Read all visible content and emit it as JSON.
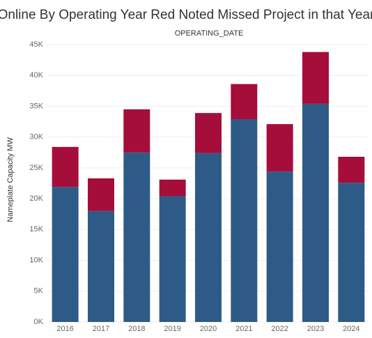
{
  "chart_data": {
    "type": "stacked_bar",
    "title": "Online By Operating Year Red Noted Missed Project in that Year",
    "x_label": "OPERATING_DATE",
    "y_label": "Nameplate Capacity MW",
    "categories": [
      "2016",
      "2017",
      "2018",
      "2019",
      "2020",
      "2021",
      "2022",
      "2023",
      "2024"
    ],
    "series": [
      {
        "color": "#2e5a87",
        "values": [
          21900,
          18000,
          27500,
          20400,
          27400,
          32900,
          24400,
          35400,
          22600
        ]
      },
      {
        "color": "#a50d3a",
        "values": [
          6500,
          5300,
          7000,
          2700,
          6500,
          5700,
          7700,
          8400,
          4200
        ]
      }
    ],
    "ylim": [
      0,
      45000
    ],
    "yticks": [
      {
        "value": 0,
        "label": "0K"
      },
      {
        "value": 5000,
        "label": "5K"
      },
      {
        "value": 10000,
        "label": "10K"
      },
      {
        "value": 15000,
        "label": "15K"
      },
      {
        "value": 20000,
        "label": "20K"
      },
      {
        "value": 25000,
        "label": "25K"
      },
      {
        "value": 30000,
        "label": "30K"
      },
      {
        "value": 35000,
        "label": "35K"
      },
      {
        "value": 40000,
        "label": "40K"
      },
      {
        "value": 45000,
        "label": "45K"
      }
    ],
    "grid": true
  }
}
